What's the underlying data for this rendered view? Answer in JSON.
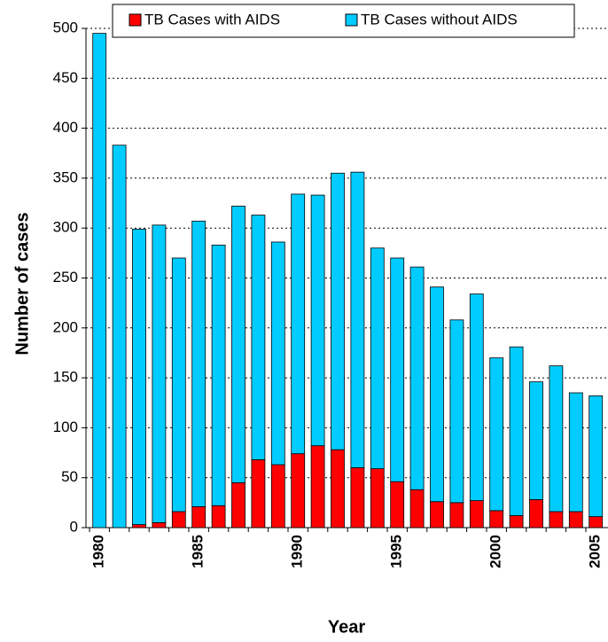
{
  "chart_data": {
    "type": "stacked-bar",
    "x_label": "Year",
    "y_label": "Number of cases",
    "categories": [
      "1980",
      null,
      null,
      null,
      null,
      "1985",
      null,
      null,
      null,
      null,
      "1990",
      null,
      null,
      null,
      null,
      "1995",
      null,
      null,
      null,
      null,
      "2000",
      null,
      null,
      null,
      null,
      "2005"
    ],
    "series": [
      {
        "name": "TB Cases with AIDS",
        "color": "#ff0000",
        "values": [
          0,
          0,
          3,
          5,
          16,
          21,
          22,
          45,
          68,
          63,
          74,
          82,
          78,
          60,
          59,
          46,
          38,
          26,
          25,
          27,
          17,
          12,
          28,
          16,
          16,
          11
        ]
      },
      {
        "name": "TB Cases without AIDS",
        "color": "#00ccff",
        "values": [
          495,
          383,
          296,
          298,
          254,
          286,
          261,
          277,
          245,
          223,
          260,
          251,
          277,
          296,
          221,
          224,
          223,
          215,
          183,
          207,
          153,
          169,
          118,
          146,
          119,
          121
        ]
      }
    ],
    "ylim": [
      0,
      500
    ],
    "yticks": [
      0,
      50,
      100,
      150,
      200,
      250,
      300,
      350,
      400,
      450,
      500
    ],
    "grid": true
  }
}
